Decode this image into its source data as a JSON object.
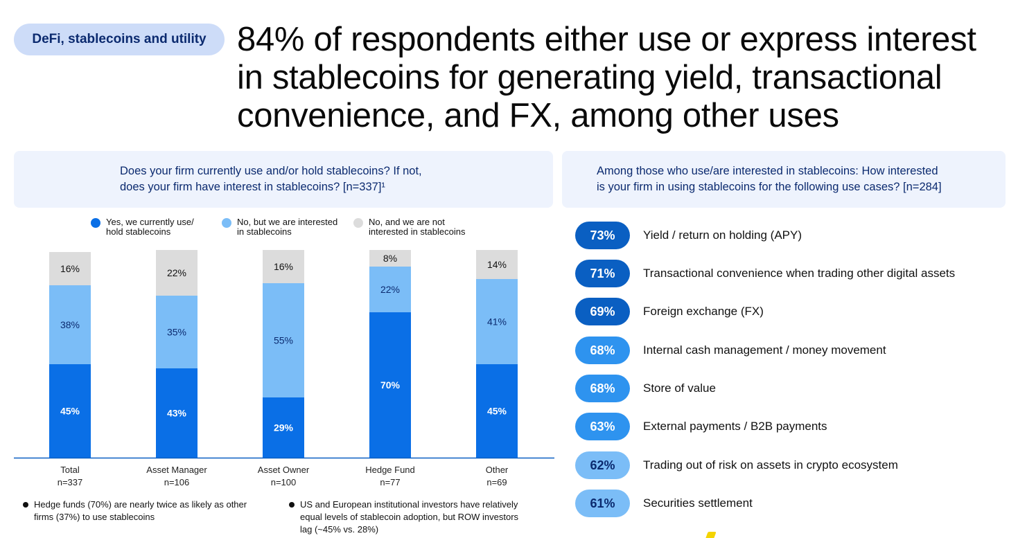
{
  "tag": "DeFi, stablecoins and utility",
  "headline": {
    "line1": "84% of respondents either use or express interest",
    "line2": "in stablecoins for generating yield, transactional",
    "line3": "convenience, and FX, among other uses"
  },
  "left_panel": {
    "question_line1": "Does your firm currently use and/or hold stablecoins? If not,",
    "question_line2": "does your firm have interest in stablecoins? [n=337]¹"
  },
  "right_panel": {
    "question_line1": "Among those who use/are interested in stablecoins: How interested",
    "question_line2": "is your firm in using stablecoins for the following use cases? [n=284]"
  },
  "legend": [
    {
      "line1": "Yes, we currently use/",
      "line2": "hold stablecoins",
      "color": "#0a6fe6"
    },
    {
      "line1": "No, but we are interested",
      "line2": "in stablecoins",
      "color": "#7bbdf7"
    },
    {
      "line1": "No, and we are not",
      "line2": "interested in stablecoins",
      "color": "#dcdcdc"
    }
  ],
  "chart_data": [
    {
      "type": "bar",
      "stacked": true,
      "categories": [
        "Total",
        "Asset Manager",
        "Asset Owner",
        "Hedge Fund",
        "Other"
      ],
      "category_n": [
        "n=337",
        "n=106",
        "n=100",
        "n=77",
        "n=69"
      ],
      "series": [
        {
          "name": "Yes, we currently use/hold stablecoins",
          "values": [
            45,
            43,
            29,
            70,
            45
          ],
          "labels": [
            "45%",
            "43%",
            "29%",
            "70%",
            "45%"
          ],
          "color": "#0a6fe6",
          "text_color": "#ffffff"
        },
        {
          "name": "No, but we are interested in stablecoins",
          "values": [
            38,
            35,
            55,
            22,
            41
          ],
          "labels": [
            "38%",
            "35%",
            "55%",
            "22%",
            "41%"
          ],
          "color": "#7bbdf7",
          "text_color": "#0b2a6f"
        },
        {
          "name": "No, and we are not interested in stablecoins",
          "values": [
            16,
            22,
            16,
            8,
            14
          ],
          "labels": [
            "16%",
            "22%",
            "16%",
            "8%",
            "14%"
          ],
          "color": "#dcdcdc",
          "text_color": "#111111"
        }
      ],
      "ylim": [
        0,
        100
      ],
      "grid": false
    },
    {
      "type": "bar",
      "orientation": "horizontal",
      "categories": [
        "Yield / return on holding (APY)",
        "Transactional convenience when trading other digital assets",
        "Foreign exchange (FX)",
        "Internal cash management / money movement",
        "Store of value",
        "External payments / B2B payments",
        "Trading out of risk on assets in crypto ecosystem",
        "Securities settlement"
      ],
      "values": [
        73,
        71,
        69,
        68,
        68,
        63,
        62,
        61
      ],
      "labels": [
        "73%",
        "71%",
        "69%",
        "68%",
        "68%",
        "63%",
        "62%",
        "61%"
      ],
      "colors": [
        "#0a5fc2",
        "#0a5fc2",
        "#0a5fc2",
        "#2e93ef",
        "#2e93ef",
        "#2e93ef",
        "#7bbdf7",
        "#7bbdf7"
      ],
      "text_colors": [
        "#ffffff",
        "#ffffff",
        "#ffffff",
        "#ffffff",
        "#ffffff",
        "#ffffff",
        "#0b2a6f",
        "#0b2a6f"
      ]
    }
  ],
  "bullets": [
    {
      "line1": "Hedge funds (70%) are nearly twice as likely as other",
      "line2": "firms (37%) to use stablecoins",
      "line3": ""
    },
    {
      "line1": "US and European institutional investors have relatively",
      "line2": "equal levels of stablecoin adoption, but ROW investors",
      "line3": "lag (~45% vs. 28%)"
    }
  ]
}
